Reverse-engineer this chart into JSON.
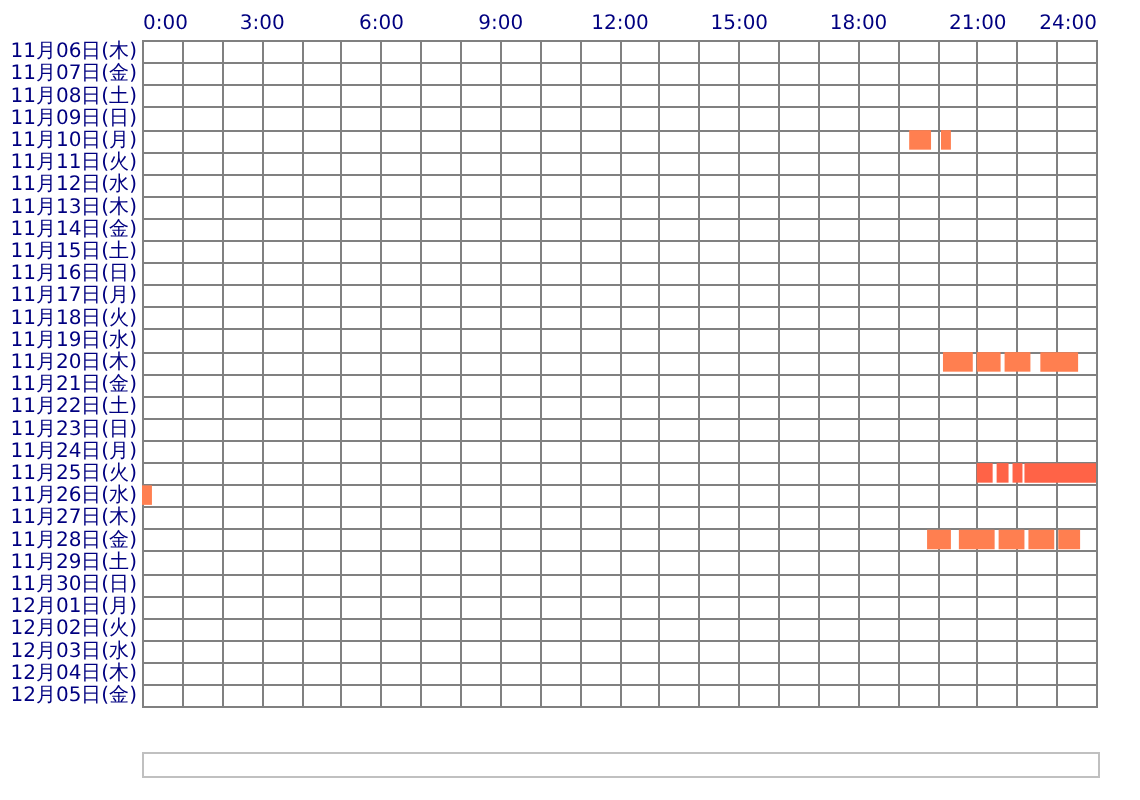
{
  "chart_data": {
    "type": "bar",
    "orientation": "horizontal",
    "categories": [
      "11月06日(木)",
      "11月07日(金)",
      "11月08日(土)",
      "11月09日(日)",
      "11月10日(月)",
      "11月11日(火)",
      "11月12日(水)",
      "11月13日(木)",
      "11月14日(金)",
      "11月15日(土)",
      "11月16日(日)",
      "11月17日(月)",
      "11月18日(火)",
      "11月19日(水)",
      "11月20日(木)",
      "11月21日(金)",
      "11月22日(土)",
      "11月23日(日)",
      "11月24日(月)",
      "11月25日(火)",
      "11月26日(水)",
      "11月27日(木)",
      "11月28日(金)",
      "11月29日(土)",
      "11月30日(日)",
      "12月01日(月)",
      "12月02日(火)",
      "12月03日(水)",
      "12月04日(木)",
      "12月05日(金)"
    ],
    "series": [
      {
        "base": [
          null,
          null,
          null,
          null,
          19.3,
          null,
          null,
          null,
          null,
          null,
          null,
          null,
          null,
          null,
          20.15,
          null,
          null,
          null,
          null,
          21.0,
          0,
          null,
          19.75,
          null,
          null,
          null,
          null,
          null,
          null,
          null
        ],
        "values": [
          null,
          null,
          null,
          null,
          0.55,
          null,
          null,
          null,
          null,
          null,
          null,
          null,
          null,
          null,
          0.75,
          null,
          null,
          null,
          null,
          0.4,
          0.25,
          null,
          0.6,
          null,
          null,
          null,
          null,
          null,
          null,
          null
        ],
        "colors": [
          null,
          null,
          null,
          null,
          "#ff7f50",
          null,
          null,
          null,
          null,
          null,
          null,
          null,
          null,
          null,
          "#ff7f50",
          null,
          null,
          null,
          null,
          "#ff6347",
          "#ff7f50",
          null,
          "#ff7f50",
          null,
          null,
          null,
          null,
          null,
          null,
          null
        ]
      },
      {
        "base": [
          null,
          null,
          null,
          null,
          20.1,
          null,
          null,
          null,
          null,
          null,
          null,
          null,
          null,
          null,
          21.0,
          null,
          null,
          null,
          null,
          21.5,
          null,
          null,
          20.55,
          null,
          null,
          null,
          null,
          null,
          null,
          null
        ],
        "values": [
          null,
          null,
          null,
          null,
          0.25,
          null,
          null,
          null,
          null,
          null,
          null,
          null,
          null,
          null,
          0.6,
          null,
          null,
          null,
          null,
          0.3,
          null,
          null,
          0.9,
          null,
          null,
          null,
          null,
          null,
          null,
          null
        ],
        "colors": [
          null,
          null,
          null,
          null,
          "#ff7f50",
          null,
          null,
          null,
          null,
          null,
          null,
          null,
          null,
          null,
          "#ff7f50",
          null,
          null,
          null,
          null,
          "#ff6347",
          null,
          null,
          "#ff7f50",
          null,
          null,
          null,
          null,
          null,
          null,
          null
        ]
      },
      {
        "base": [
          null,
          null,
          null,
          null,
          null,
          null,
          null,
          null,
          null,
          null,
          null,
          null,
          null,
          null,
          21.7,
          null,
          null,
          null,
          null,
          21.9,
          null,
          null,
          21.55,
          null,
          null,
          null,
          null,
          null,
          null,
          null
        ],
        "values": [
          null,
          null,
          null,
          null,
          null,
          null,
          null,
          null,
          null,
          null,
          null,
          null,
          null,
          null,
          0.65,
          null,
          null,
          null,
          null,
          0.25,
          null,
          null,
          0.65,
          null,
          null,
          null,
          null,
          null,
          null,
          null
        ],
        "colors": [
          null,
          null,
          null,
          null,
          null,
          null,
          null,
          null,
          null,
          null,
          null,
          null,
          null,
          null,
          "#ff7f50",
          null,
          null,
          null,
          null,
          "#ff6347",
          null,
          null,
          "#ff7f50",
          null,
          null,
          null,
          null,
          null,
          null,
          null
        ]
      },
      {
        "base": [
          null,
          null,
          null,
          null,
          null,
          null,
          null,
          null,
          null,
          null,
          null,
          null,
          null,
          null,
          22.6,
          null,
          null,
          null,
          null,
          22.2,
          null,
          null,
          22.3,
          null,
          null,
          null,
          null,
          null,
          null,
          null
        ],
        "values": [
          null,
          null,
          null,
          null,
          null,
          null,
          null,
          null,
          null,
          null,
          null,
          null,
          null,
          null,
          0.95,
          null,
          null,
          null,
          null,
          1.8,
          null,
          null,
          0.65,
          null,
          null,
          null,
          null,
          null,
          null,
          null
        ],
        "colors": [
          null,
          null,
          null,
          null,
          null,
          null,
          null,
          null,
          null,
          null,
          null,
          null,
          null,
          null,
          "#ff7f50",
          null,
          null,
          null,
          null,
          "#ff6347",
          null,
          null,
          "#ff7f50",
          null,
          null,
          null,
          null,
          null,
          null,
          null
        ]
      },
      {
        "base": [
          null,
          null,
          null,
          null,
          null,
          null,
          null,
          null,
          null,
          null,
          null,
          null,
          null,
          null,
          null,
          null,
          null,
          null,
          null,
          null,
          null,
          null,
          23.05,
          null,
          null,
          null,
          null,
          null,
          null,
          null
        ],
        "values": [
          null,
          null,
          null,
          null,
          null,
          null,
          null,
          null,
          null,
          null,
          null,
          null,
          null,
          null,
          null,
          null,
          null,
          null,
          null,
          null,
          null,
          null,
          0.55,
          null,
          null,
          null,
          null,
          null,
          null,
          null
        ],
        "colors": [
          null,
          null,
          null,
          null,
          null,
          null,
          null,
          null,
          null,
          null,
          null,
          null,
          null,
          null,
          null,
          null,
          null,
          null,
          null,
          null,
          null,
          null,
          "#ff7f50",
          null,
          null,
          null,
          null,
          null,
          null,
          null
        ]
      }
    ],
    "xlim": [
      0,
      24
    ],
    "xticks": [
      {
        "value": 0,
        "label": "0:00"
      },
      {
        "value": 1,
        "label": null
      },
      {
        "value": 2,
        "label": null
      },
      {
        "value": 3,
        "label": "3:00"
      },
      {
        "value": 4,
        "label": null
      },
      {
        "value": 5,
        "label": null
      },
      {
        "value": 6,
        "label": "6:00"
      },
      {
        "value": 7,
        "label": null
      },
      {
        "value": 8,
        "label": null
      },
      {
        "value": 9,
        "label": "9:00"
      },
      {
        "value": 10,
        "label": null
      },
      {
        "value": 11,
        "label": null
      },
      {
        "value": 12,
        "label": "12:00"
      },
      {
        "value": 13,
        "label": null
      },
      {
        "value": 14,
        "label": null
      },
      {
        "value": 15,
        "label": "15:00"
      },
      {
        "value": 16,
        "label": null
      },
      {
        "value": 17,
        "label": null
      },
      {
        "value": 18,
        "label": "18:00"
      },
      {
        "value": 19,
        "label": null
      },
      {
        "value": 20,
        "label": null
      },
      {
        "value": 21,
        "label": "21:00"
      },
      {
        "value": 22,
        "label": null
      },
      {
        "value": 23,
        "label": null
      },
      {
        "value": 24,
        "label": "24:00"
      }
    ],
    "grid": true
  }
}
